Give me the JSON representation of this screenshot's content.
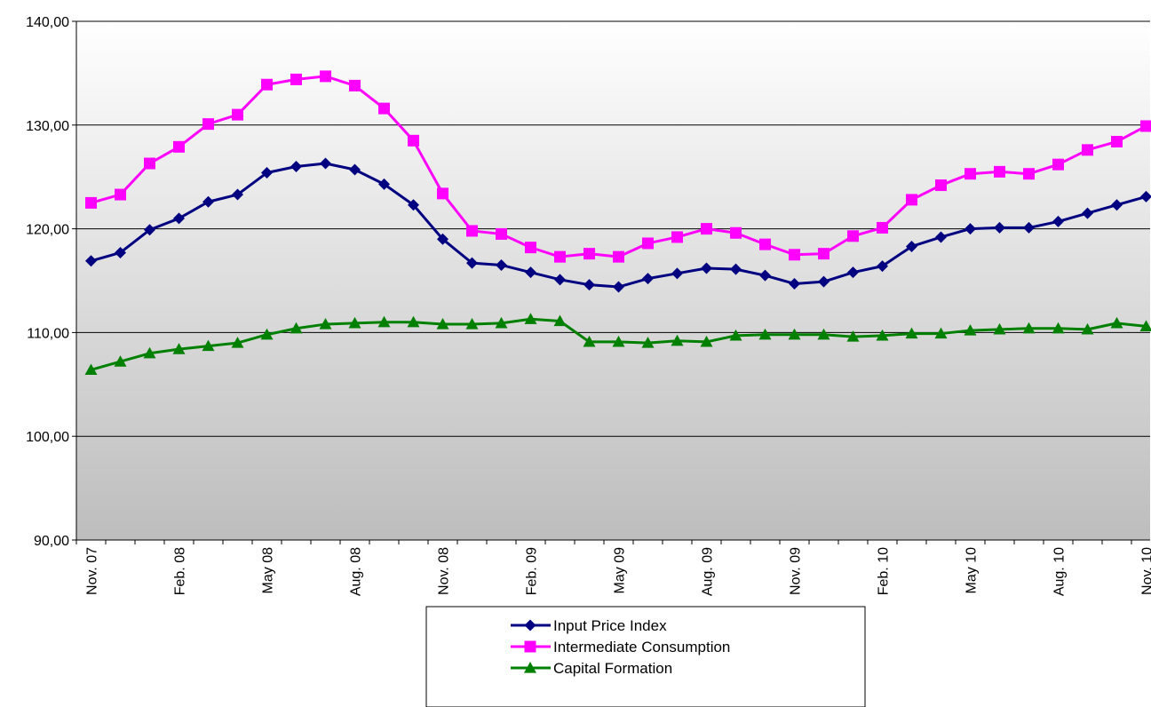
{
  "chart_data": {
    "type": "line",
    "title": "",
    "xlabel": "",
    "ylabel": "",
    "ylim": [
      90,
      140
    ],
    "yticks": [
      "90,00",
      "100,00",
      "110,00",
      "120,00",
      "130,00",
      "140,00"
    ],
    "ytick_values": [
      90,
      100,
      110,
      120,
      130,
      140
    ],
    "grid": true,
    "background": "vertical gradient white to grey",
    "legend_position": "bottom-center",
    "x_tick_labels": [
      {
        "index": 0,
        "label": "Nov. 07"
      },
      {
        "index": 3,
        "label": "Feb. 08"
      },
      {
        "index": 6,
        "label": "May 08"
      },
      {
        "index": 9,
        "label": "Aug. 08"
      },
      {
        "index": 12,
        "label": "Nov. 08"
      },
      {
        "index": 15,
        "label": "Feb. 09"
      },
      {
        "index": 18,
        "label": "May 09"
      },
      {
        "index": 21,
        "label": "Aug. 09"
      },
      {
        "index": 24,
        "label": "Nov. 09"
      },
      {
        "index": 27,
        "label": "Feb. 10"
      },
      {
        "index": 30,
        "label": "May 10"
      },
      {
        "index": 33,
        "label": "Aug. 10"
      },
      {
        "index": 36,
        "label": "Nov. 10"
      }
    ],
    "x": [
      "2007-11",
      "2007-12",
      "2008-01",
      "2008-02",
      "2008-03",
      "2008-04",
      "2008-05",
      "2008-06",
      "2008-07",
      "2008-08",
      "2008-09",
      "2008-10",
      "2008-11",
      "2008-12",
      "2009-01",
      "2009-02",
      "2009-03",
      "2009-04",
      "2009-05",
      "2009-06",
      "2009-07",
      "2009-08",
      "2009-09",
      "2009-10",
      "2009-11",
      "2009-12",
      "2010-01",
      "2010-02",
      "2010-03",
      "2010-04",
      "2010-05",
      "2010-06",
      "2010-07",
      "2010-08",
      "2010-09",
      "2010-10",
      "2010-11"
    ],
    "series": [
      {
        "name": "Input Price Index",
        "color": "#000080",
        "marker": "diamond",
        "values": [
          116.9,
          117.7,
          119.9,
          121.0,
          122.6,
          123.3,
          125.4,
          126.0,
          126.3,
          125.7,
          124.3,
          122.3,
          119.0,
          116.7,
          116.5,
          115.8,
          115.1,
          114.6,
          114.4,
          115.2,
          115.7,
          116.2,
          116.1,
          115.5,
          114.7,
          114.9,
          115.8,
          116.4,
          118.3,
          119.2,
          120.0,
          120.1,
          120.1,
          120.7,
          121.5,
          122.3,
          123.1
        ]
      },
      {
        "name": "Intermediate Consumption",
        "color": "#FF00FF",
        "marker": "square",
        "values": [
          122.5,
          123.3,
          126.3,
          127.9,
          130.1,
          131.0,
          133.9,
          134.4,
          134.7,
          133.8,
          131.6,
          128.5,
          123.4,
          119.8,
          119.5,
          118.2,
          117.3,
          117.6,
          117.3,
          118.6,
          119.2,
          120.0,
          119.6,
          118.5,
          117.5,
          117.6,
          119.3,
          120.1,
          122.8,
          124.2,
          125.3,
          125.5,
          125.3,
          126.2,
          127.6,
          128.4,
          129.9
        ]
      },
      {
        "name": "Capital Formation",
        "color": "#008000",
        "marker": "triangle",
        "values": [
          106.4,
          107.2,
          108.0,
          108.4,
          108.7,
          109.0,
          109.8,
          110.4,
          110.8,
          110.9,
          111.0,
          111.0,
          110.8,
          110.8,
          110.9,
          111.3,
          111.1,
          109.1,
          109.1,
          109.0,
          109.2,
          109.1,
          109.7,
          109.8,
          109.8,
          109.8,
          109.6,
          109.7,
          109.9,
          109.9,
          110.2,
          110.3,
          110.4,
          110.4,
          110.3,
          110.9,
          110.6
        ]
      }
    ]
  }
}
